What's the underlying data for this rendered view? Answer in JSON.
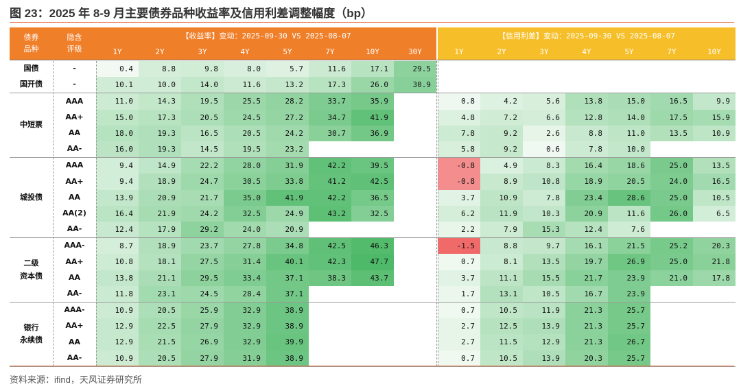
{
  "title": "图 23：2025 年 8-9 月主要债券品种收益率及信用利差调整幅度（bp）",
  "source": "资料来源：ifind，天风证券研究所",
  "colors": {
    "yield_header": "#f07f2a",
    "spread_header": "#f6bf2a",
    "green_scale": [
      "#f3faf3",
      "#4db967"
    ],
    "red_scale": [
      "#f9b8b8",
      "#f06a6a"
    ]
  },
  "header": {
    "bond_type_label": "债券\n品种",
    "rating_label": "隐含\n评级",
    "yield_title": "【收益率】变动：2025-09-30 VS 2025-08-07",
    "spread_title": "【信用利差】变动：2025-09-30 VS 2025-08-07",
    "yield_tenors": [
      "1Y",
      "2Y",
      "3Y",
      "4Y",
      "5Y",
      "7Y",
      "10Y",
      "30Y"
    ],
    "spread_tenors": [
      "1Y",
      "2Y",
      "3Y",
      "4Y",
      "5Y",
      "7Y",
      "10Y"
    ]
  },
  "groups": [
    {
      "name": "",
      "rows": [
        {
          "type": "国债",
          "rating": "-",
          "yield": [
            0.4,
            8.8,
            9.8,
            8.0,
            5.7,
            11.6,
            17.1,
            29.5
          ],
          "spread": [
            null,
            null,
            null,
            null,
            null,
            null,
            null
          ]
        },
        {
          "type": "国开债",
          "rating": "-",
          "yield": [
            10.1,
            10.0,
            14.0,
            11.6,
            13.2,
            17.3,
            26.0,
            30.9
          ],
          "spread": [
            null,
            null,
            null,
            null,
            null,
            null,
            null
          ]
        }
      ]
    },
    {
      "name": "中短票",
      "rows": [
        {
          "rating": "AAA",
          "yield": [
            11.0,
            14.3,
            19.5,
            25.5,
            28.2,
            33.7,
            35.9,
            null
          ],
          "spread": [
            0.8,
            4.2,
            5.6,
            13.8,
            15.0,
            16.5,
            9.9
          ]
        },
        {
          "rating": "AA+",
          "yield": [
            15.0,
            17.3,
            20.5,
            24.5,
            27.2,
            34.7,
            41.9,
            null
          ],
          "spread": [
            4.8,
            7.2,
            6.6,
            12.8,
            14.0,
            17.5,
            15.9
          ]
        },
        {
          "rating": "AA",
          "yield": [
            18.0,
            19.3,
            16.5,
            20.5,
            24.2,
            30.7,
            36.9,
            null
          ],
          "spread": [
            7.8,
            9.2,
            2.6,
            8.8,
            11.0,
            13.5,
            10.9
          ]
        },
        {
          "rating": "AA-",
          "yield": [
            16.0,
            19.3,
            14.5,
            19.5,
            23.2,
            null,
            null,
            null
          ],
          "spread": [
            5.8,
            9.2,
            0.6,
            7.8,
            10.0,
            null,
            null
          ]
        }
      ]
    },
    {
      "name": "城投债",
      "rows": [
        {
          "rating": "AAA",
          "yield": [
            9.4,
            14.9,
            22.2,
            28.0,
            31.9,
            42.2,
            39.5,
            null
          ],
          "spread": [
            -0.8,
            4.9,
            8.3,
            16.4,
            18.6,
            25.0,
            13.5
          ]
        },
        {
          "rating": "AA+",
          "yield": [
            9.4,
            18.9,
            24.7,
            30.5,
            33.8,
            41.2,
            42.5,
            null
          ],
          "spread": [
            -0.8,
            8.9,
            10.8,
            18.9,
            20.5,
            24.0,
            16.5
          ]
        },
        {
          "rating": "AA",
          "yield": [
            13.9,
            20.9,
            21.7,
            35.0,
            41.9,
            42.2,
            36.5,
            null
          ],
          "spread": [
            3.7,
            10.9,
            7.8,
            23.4,
            28.6,
            25.0,
            10.5
          ]
        },
        {
          "rating": "AA(2)",
          "yield": [
            16.4,
            21.9,
            24.2,
            32.5,
            24.9,
            43.2,
            32.5,
            null
          ],
          "spread": [
            6.2,
            11.9,
            10.3,
            20.9,
            11.6,
            26.0,
            6.5
          ]
        },
        {
          "rating": "AA-",
          "yield": [
            12.4,
            17.9,
            29.2,
            24.0,
            20.9,
            null,
            null,
            null
          ],
          "spread": [
            2.2,
            7.9,
            15.3,
            12.4,
            7.6,
            null,
            null
          ]
        }
      ]
    },
    {
      "name": "二级\n资本债",
      "rows": [
        {
          "rating": "AAA-",
          "yield": [
            8.7,
            18.9,
            23.7,
            27.8,
            34.8,
            42.5,
            46.3,
            null
          ],
          "spread": [
            -1.5,
            8.8,
            9.7,
            16.1,
            21.5,
            25.2,
            20.3
          ]
        },
        {
          "rating": "AA+",
          "yield": [
            10.8,
            18.1,
            27.5,
            31.4,
            40.1,
            42.3,
            47.7,
            null
          ],
          "spread": [
            0.7,
            8.1,
            13.5,
            19.7,
            26.9,
            25.0,
            21.8
          ]
        },
        {
          "rating": "AA",
          "yield": [
            13.8,
            21.1,
            29.5,
            33.4,
            37.1,
            38.3,
            43.7,
            null
          ],
          "spread": [
            3.7,
            11.1,
            15.5,
            21.7,
            23.9,
            21.0,
            17.8
          ]
        },
        {
          "rating": "AA-",
          "yield": [
            11.8,
            23.1,
            24.5,
            28.4,
            37.1,
            null,
            null,
            null
          ],
          "spread": [
            1.7,
            13.1,
            10.5,
            16.7,
            23.9,
            null,
            null
          ]
        }
      ]
    },
    {
      "name": "银行\n永续债",
      "rows": [
        {
          "rating": "AAA-",
          "yield": [
            10.9,
            20.5,
            25.9,
            32.9,
            38.9,
            null,
            null,
            null
          ],
          "spread": [
            0.7,
            10.5,
            11.9,
            21.3,
            25.7,
            null,
            null
          ]
        },
        {
          "rating": "AA+",
          "yield": [
            12.9,
            22.5,
            27.9,
            32.9,
            38.9,
            null,
            null,
            null
          ],
          "spread": [
            2.7,
            12.5,
            13.9,
            21.3,
            25.7,
            null,
            null
          ]
        },
        {
          "rating": "AA",
          "yield": [
            12.9,
            21.5,
            26.9,
            32.9,
            39.9,
            null,
            null,
            null
          ],
          "spread": [
            2.7,
            11.5,
            12.9,
            21.3,
            26.7,
            null,
            null
          ]
        },
        {
          "rating": "AA-",
          "yield": [
            10.9,
            20.5,
            27.9,
            31.9,
            38.9,
            null,
            null,
            null
          ],
          "spread": [
            0.7,
            10.5,
            13.9,
            20.3,
            25.7,
            null,
            null
          ]
        }
      ]
    }
  ]
}
